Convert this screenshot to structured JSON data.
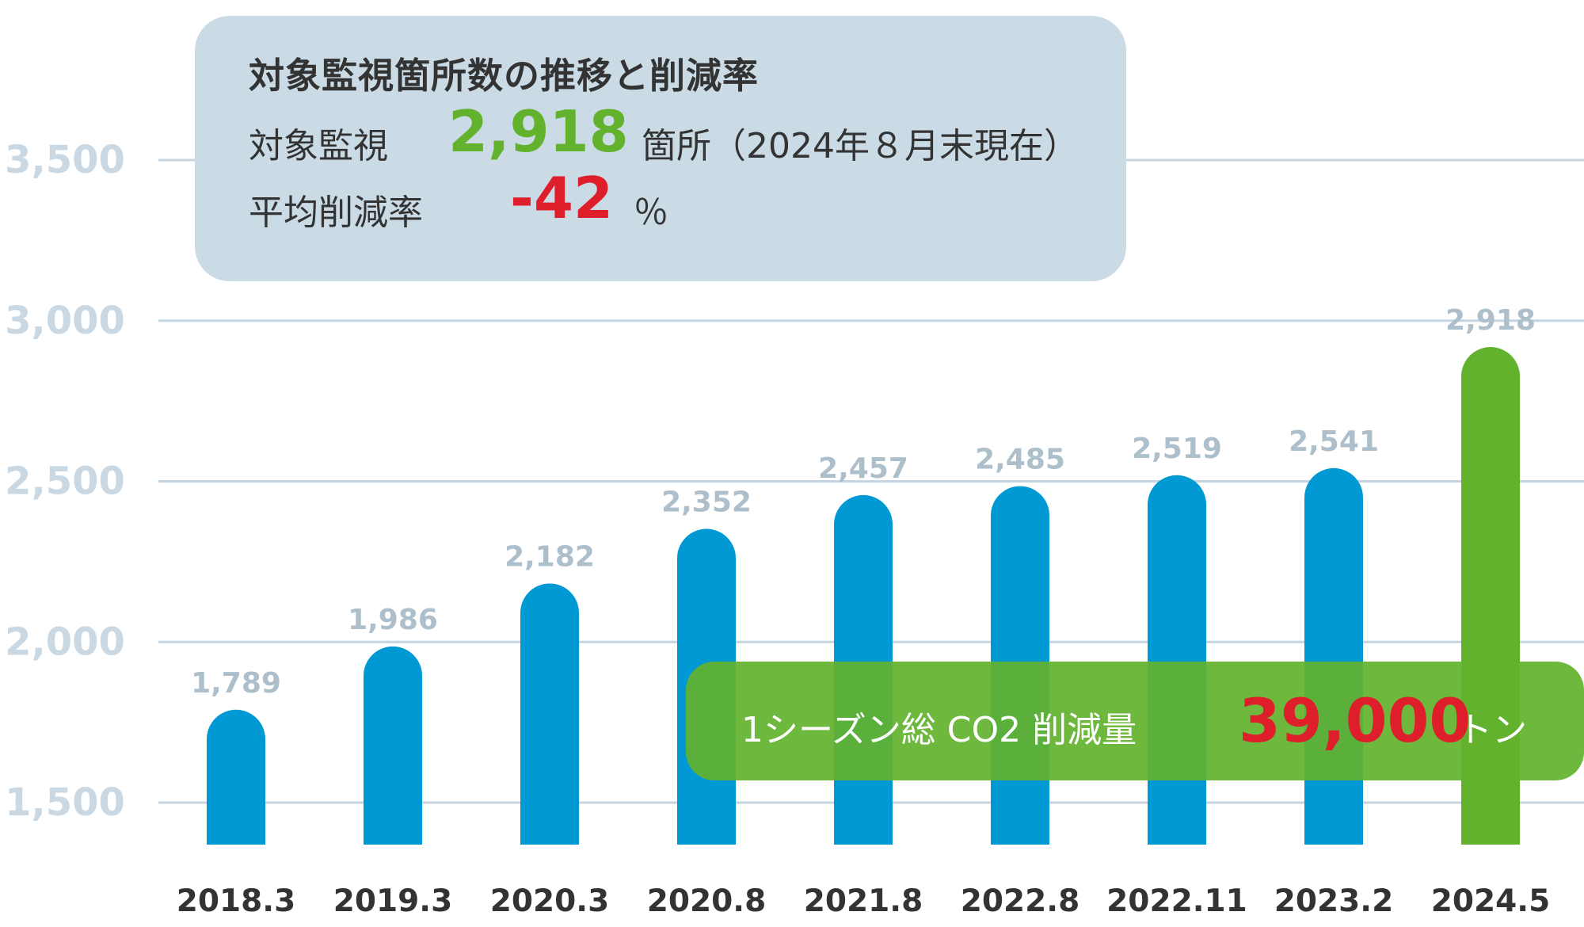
{
  "chart_data": {
    "type": "bar",
    "categories": [
      "2018.3",
      "2019.3",
      "2020.3",
      "2020.8",
      "2021.8",
      "2022.8",
      "2022.11",
      "2023.2",
      "2024.5"
    ],
    "values": [
      1789,
      1986,
      2182,
      2352,
      2457,
      2485,
      2519,
      2541,
      2918
    ],
    "value_labels": [
      "1,789",
      "1,986",
      "2,182",
      "2,352",
      "2,457",
      "2,485",
      "2,519",
      "2,541",
      "2,918"
    ],
    "yticks": [
      1500,
      2000,
      2500,
      3000,
      3500
    ],
    "ytick_labels": [
      "1,500",
      "2,000",
      "2,500",
      "3,000",
      "3,500"
    ],
    "ylim": [
      1500,
      3500
    ],
    "grid": true,
    "highlight_index": 8,
    "colors": {
      "bar": "#0099d4",
      "highlight": "#62b22e",
      "grid": "#c4d5e1"
    }
  },
  "info_box": {
    "title": "対象監視箇所数の推移と削減率",
    "monitor_label": "対象監視",
    "monitor_value": "2,918",
    "monitor_unit": "箇所（2024年８月末現在）",
    "reduction_label": "平均削減率",
    "reduction_value": "-42",
    "reduction_unit": "％"
  },
  "co2_box": {
    "label": "1シーズン総 CO2 削減量",
    "value": "39,000",
    "unit": "トン"
  }
}
